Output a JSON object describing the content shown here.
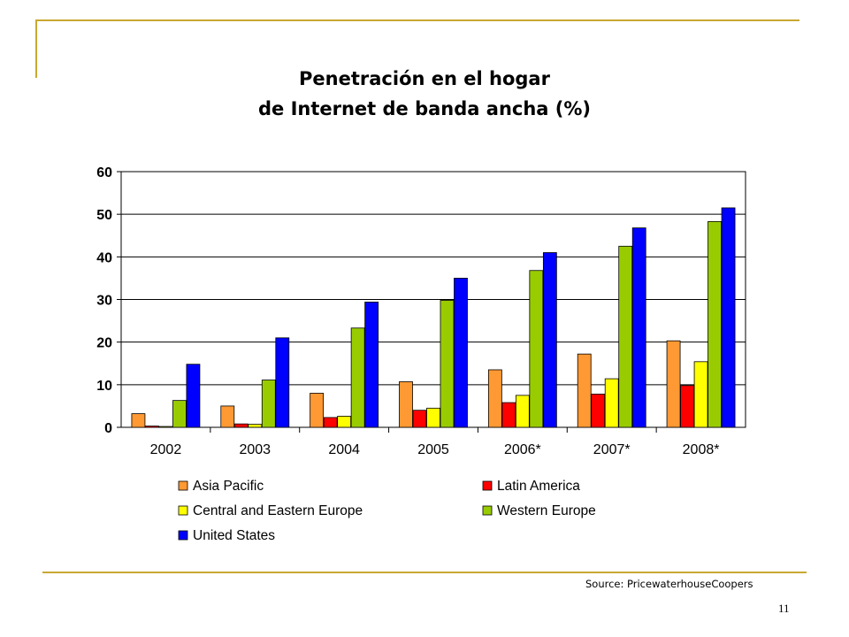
{
  "slide": {
    "title_line1": "Penetración en el hogar",
    "title_line2": "de Internet de banda ancha (%)",
    "source": "Source: PricewaterhouseCoopers",
    "page_number": "11",
    "accent_color": "#c9a832"
  },
  "chart_data": {
    "type": "bar",
    "title": "Penetración en el hogar de Internet de banda ancha (%)",
    "xlabel": "",
    "ylabel": "",
    "categories": [
      "2002",
      "2003",
      "2004",
      "2005",
      "2006*",
      "2007*",
      "2008*"
    ],
    "ylim": [
      0,
      60
    ],
    "yticks": [
      "0",
      "10",
      "20",
      "30",
      "40",
      "50",
      "60"
    ],
    "grid": true,
    "legend_position": "bottom",
    "series": [
      {
        "name": "Asia Pacific",
        "color": "#ff9933",
        "values": [
          3.2,
          5.0,
          8.0,
          10.7,
          13.5,
          17.2,
          20.3
        ]
      },
      {
        "name": "Latin America",
        "color": "#ff0000",
        "values": [
          0.3,
          0.8,
          2.3,
          4.0,
          5.8,
          7.8,
          9.8
        ]
      },
      {
        "name": "Central and Eastern Europe",
        "color": "#ffff00",
        "values": [
          0.2,
          0.7,
          2.6,
          4.5,
          7.5,
          11.4,
          15.4
        ]
      },
      {
        "name": "Western Europe",
        "color": "#99cc00",
        "values": [
          6.3,
          11.1,
          23.3,
          29.8,
          36.8,
          42.5,
          48.3
        ]
      },
      {
        "name": "United States",
        "color": "#0000ff",
        "values": [
          14.8,
          21.0,
          29.4,
          35.0,
          41.0,
          46.8,
          51.5
        ]
      }
    ]
  }
}
